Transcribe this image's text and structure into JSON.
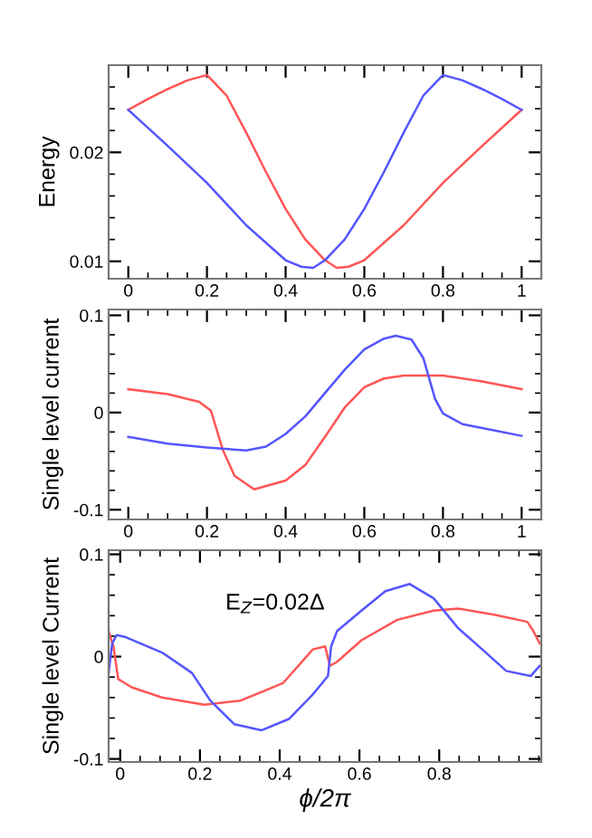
{
  "chart_data": [
    {
      "type": "line",
      "ylabel": "Energy",
      "xlim": [
        -0.05,
        1.05
      ],
      "ylim": [
        0.0084,
        0.028
      ],
      "xticks": [
        0,
        0.2,
        0.4,
        0.6,
        0.8,
        1
      ],
      "yticks": [
        0.01,
        0.02
      ],
      "grid": false,
      "series": [
        {
          "color": "#ff5555",
          "x": [
            0,
            0.05,
            0.1,
            0.15,
            0.2,
            0.25,
            0.3,
            0.35,
            0.4,
            0.45,
            0.5,
            0.53,
            0.56,
            0.6,
            0.7,
            0.8,
            0.9,
            1
          ],
          "values": [
            0.0239,
            0.0249,
            0.0258,
            0.0266,
            0.0271,
            0.0252,
            0.0218,
            0.0182,
            0.0148,
            0.012,
            0.0101,
            0.0094,
            0.0095,
            0.0101,
            0.0133,
            0.0172,
            0.0206,
            0.0239
          ]
        },
        {
          "color": "#5555ff",
          "x": [
            0,
            0.1,
            0.2,
            0.3,
            0.4,
            0.44,
            0.47,
            0.5,
            0.55,
            0.6,
            0.65,
            0.7,
            0.75,
            0.8,
            0.85,
            0.9,
            0.95,
            1
          ],
          "values": [
            0.0239,
            0.0206,
            0.0172,
            0.0133,
            0.0101,
            0.0095,
            0.0094,
            0.0101,
            0.012,
            0.0148,
            0.0182,
            0.0218,
            0.0252,
            0.0271,
            0.0266,
            0.0258,
            0.0249,
            0.0239
          ]
        }
      ]
    },
    {
      "type": "line",
      "ylabel": "Single level current",
      "xlim": [
        -0.05,
        1.05
      ],
      "ylim": [
        -0.11,
        0.106
      ],
      "xticks": [
        0,
        0.2,
        0.4,
        0.6,
        0.8,
        1
      ],
      "yticks": [
        -0.1,
        0,
        0.1
      ],
      "grid": false,
      "series": [
        {
          "color": "#ff5555",
          "x": [
            0,
            0.1,
            0.18,
            0.21,
            0.24,
            0.27,
            0.32,
            0.4,
            0.45,
            0.5,
            0.55,
            0.6,
            0.65,
            0.7,
            0.8,
            0.9,
            1
          ],
          "values": [
            0.024,
            0.019,
            0.011,
            0.002,
            -0.038,
            -0.065,
            -0.079,
            -0.07,
            -0.054,
            -0.025,
            0.005,
            0.026,
            0.035,
            0.038,
            0.038,
            0.032,
            0.024
          ]
        },
        {
          "color": "#5555ff",
          "x": [
            0,
            0.1,
            0.2,
            0.3,
            0.35,
            0.4,
            0.45,
            0.5,
            0.55,
            0.6,
            0.65,
            0.68,
            0.72,
            0.75,
            0.78,
            0.8,
            0.85,
            0.9,
            1
          ],
          "values": [
            -0.025,
            -0.032,
            -0.036,
            -0.039,
            -0.035,
            -0.022,
            -0.004,
            0.02,
            0.044,
            0.065,
            0.076,
            0.079,
            0.075,
            0.056,
            0.014,
            -0.001,
            -0.012,
            -0.016,
            -0.024
          ]
        }
      ]
    },
    {
      "type": "line",
      "ylabel": "Single level Current",
      "xlabel": "ϕ/2π",
      "annotations": [
        "E$_{Z}$=0.02Δ"
      ],
      "xlim": [
        -0.029,
        1.056
      ],
      "ylim": [
        -0.103,
        0.104
      ],
      "xticks": [
        0,
        0.2,
        0.4,
        0.6,
        0.8
      ],
      "yticks": [
        -0.1,
        0,
        0.1
      ],
      "grid": false,
      "series": [
        {
          "color": "#ff5555",
          "x": [
            -0.029,
            -0.017,
            -0.005,
            0.029,
            0.105,
            0.211,
            0.302,
            0.408,
            0.483,
            0.514,
            0.526,
            0.544,
            0.605,
            0.695,
            0.786,
            0.847,
            0.938,
            1.021,
            1.036,
            1.052
          ],
          "values": [
            0.025,
            0.01,
            -0.022,
            -0.03,
            -0.04,
            -0.047,
            -0.043,
            -0.026,
            0.007,
            0.01,
            -0.009,
            -0.005,
            0.016,
            0.036,
            0.045,
            0.047,
            0.041,
            0.034,
            0.025,
            0.013
          ]
        },
        {
          "color": "#5555ff",
          "x": [
            -0.029,
            -0.02,
            -0.009,
            0.014,
            0.105,
            0.18,
            0.226,
            0.286,
            0.355,
            0.423,
            0.483,
            0.521,
            0.529,
            0.544,
            0.605,
            0.665,
            0.726,
            0.786,
            0.847,
            0.908,
            0.968,
            1.029,
            1.052
          ],
          "values": [
            -0.016,
            0.013,
            0.021,
            0.019,
            0.004,
            -0.016,
            -0.043,
            -0.066,
            -0.072,
            -0.061,
            -0.037,
            -0.019,
            0.01,
            0.025,
            0.045,
            0.064,
            0.071,
            0.057,
            0.028,
            0.007,
            -0.014,
            -0.019,
            -0.009
          ]
        }
      ]
    }
  ]
}
